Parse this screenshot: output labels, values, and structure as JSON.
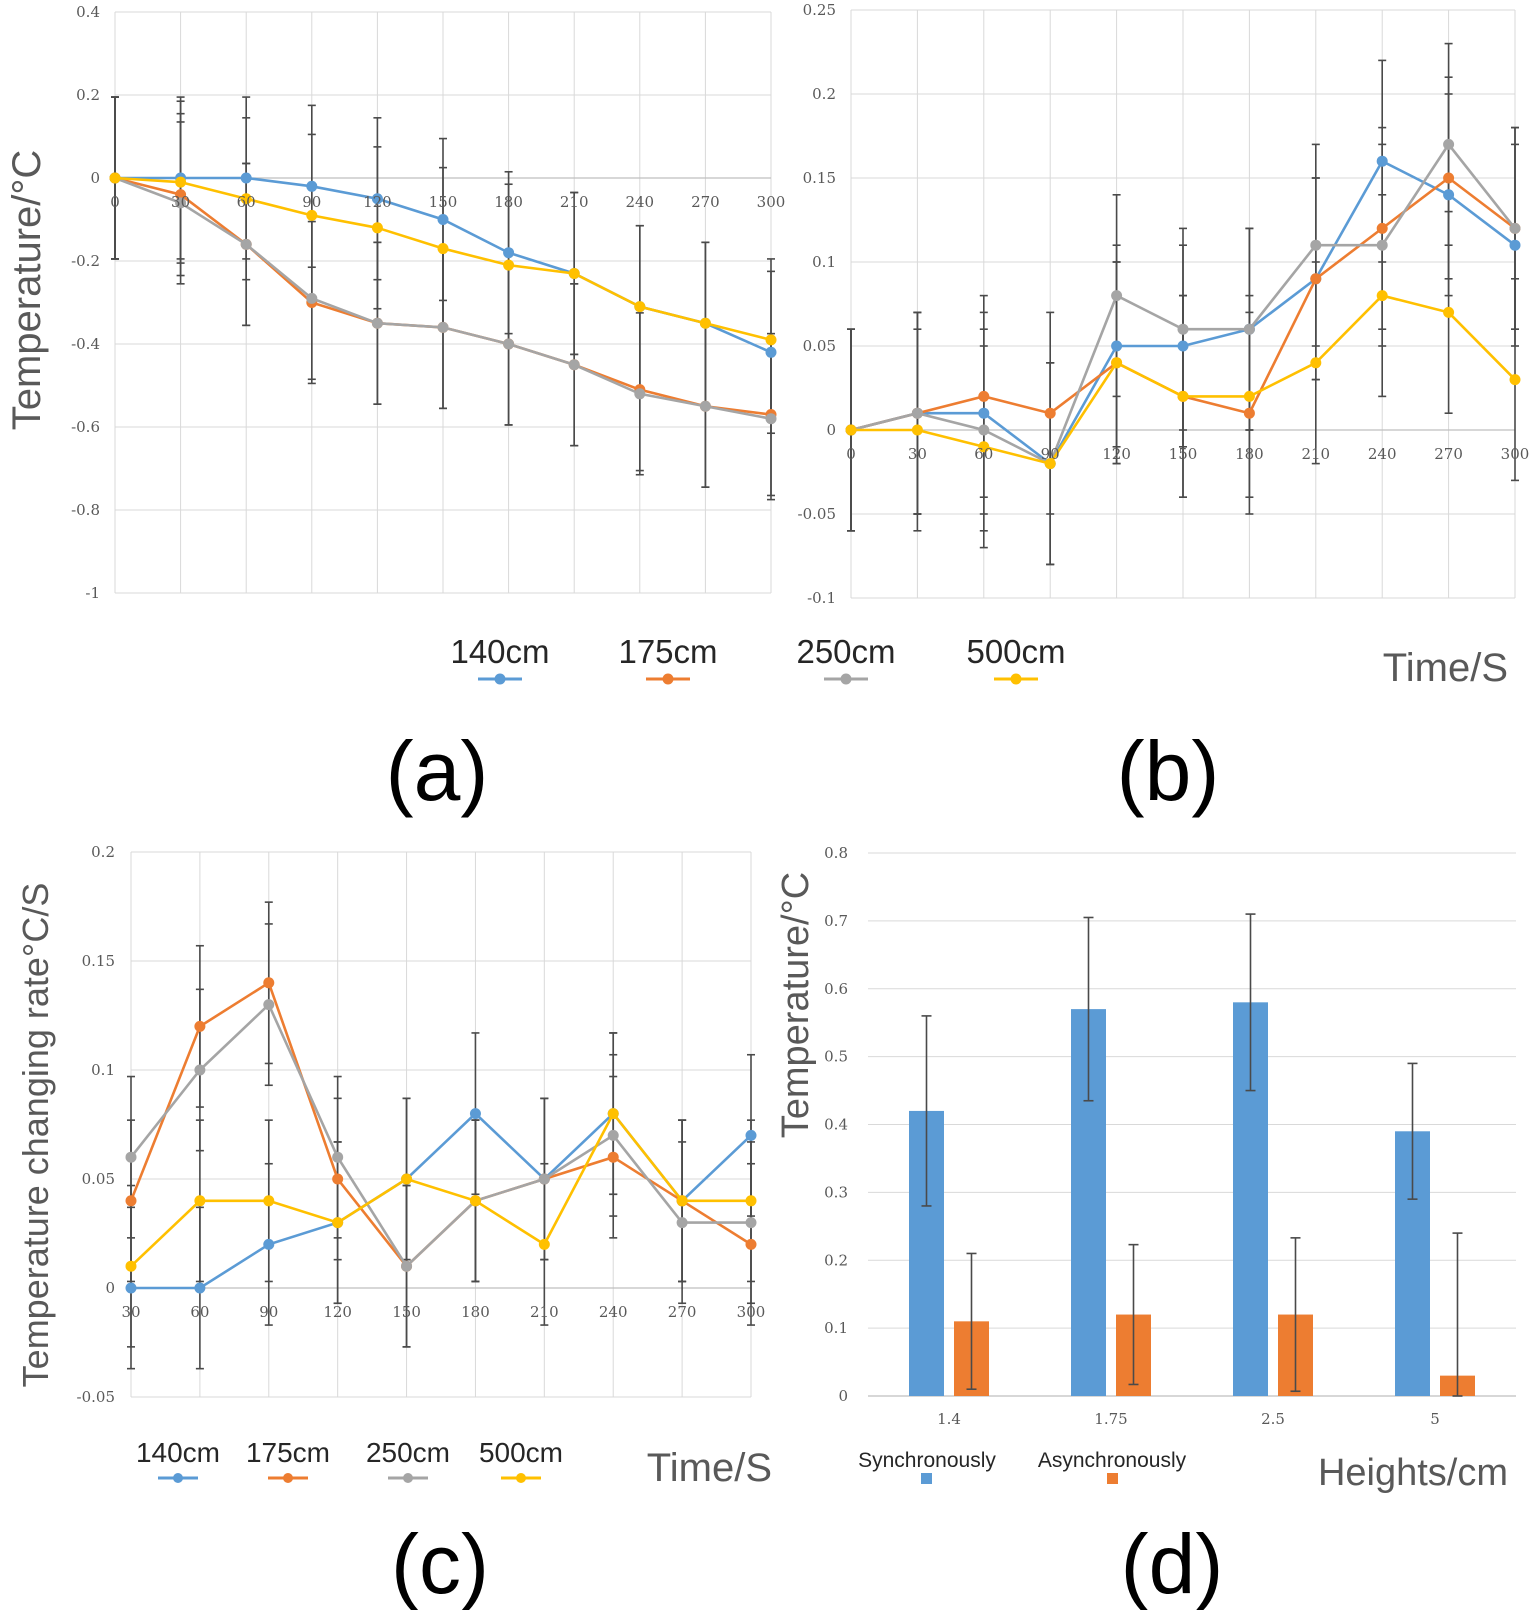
{
  "chart_data": [
    {
      "id": "a",
      "type": "line",
      "panel_label": "(a)",
      "ylabel": "Temperature/°C",
      "xlabel": "",
      "categories": [
        "0",
        "30",
        "60",
        "90",
        "120",
        "150",
        "180",
        "210",
        "240",
        "270",
        "300"
      ],
      "ylim": [
        -1,
        0.4
      ],
      "yticks": [
        "0.4",
        "0.2",
        "0",
        "-0.2",
        "-0.4",
        "-0.6",
        "-0.8",
        "-1"
      ],
      "grid": true,
      "series": [
        {
          "name": "140cm",
          "color": "#5b9bd5",
          "values": [
            0,
            0,
            0,
            -0.02,
            -0.05,
            -0.1,
            -0.18,
            -0.23,
            -0.31,
            -0.35,
            -0.42
          ]
        },
        {
          "name": "175cm",
          "color": "#ed7d31",
          "values": [
            0,
            -0.04,
            -0.16,
            -0.3,
            -0.35,
            -0.36,
            -0.4,
            -0.45,
            -0.51,
            -0.55,
            -0.57
          ]
        },
        {
          "name": "250cm",
          "color": "#a5a5a5",
          "values": [
            0,
            -0.06,
            -0.16,
            -0.29,
            -0.35,
            -0.36,
            -0.4,
            -0.45,
            -0.52,
            -0.55,
            -0.58
          ]
        },
        {
          "name": "500cm",
          "color": "#ffc000",
          "values": [
            0,
            -0.01,
            -0.05,
            -0.09,
            -0.12,
            -0.17,
            -0.21,
            -0.23,
            -0.31,
            -0.35,
            -0.39
          ]
        }
      ],
      "error": 0.195
    },
    {
      "id": "b",
      "type": "line",
      "panel_label": "(b)",
      "ylabel": "",
      "xlabel": "Time/S",
      "categories": [
        "0",
        "30",
        "60",
        "90",
        "120",
        "150",
        "180",
        "210",
        "240",
        "270",
        "300"
      ],
      "ylim": [
        -0.1,
        0.25
      ],
      "yticks": [
        "0.25",
        "0.2",
        "0.15",
        "0.1",
        "0.05",
        "0",
        "-0.05",
        "-0.1"
      ],
      "grid": true,
      "series": [
        {
          "name": "140cm",
          "color": "#5b9bd5",
          "values": [
            0,
            0.01,
            0.01,
            -0.02,
            0.05,
            0.05,
            0.06,
            0.09,
            0.16,
            0.14,
            0.11
          ]
        },
        {
          "name": "175cm",
          "color": "#ed7d31",
          "values": [
            0,
            0.01,
            0.02,
            0.01,
            0.04,
            0.02,
            0.01,
            0.09,
            0.12,
            0.15,
            0.12
          ]
        },
        {
          "name": "250cm",
          "color": "#a5a5a5",
          "values": [
            0,
            0.01,
            0,
            -0.02,
            0.08,
            0.06,
            0.06,
            0.11,
            0.11,
            0.17,
            0.12
          ]
        },
        {
          "name": "500cm",
          "color": "#ffc000",
          "values": [
            0,
            0,
            -0.01,
            -0.02,
            0.04,
            0.02,
            0.02,
            0.04,
            0.08,
            0.07,
            0.03
          ]
        }
      ],
      "error": 0.06
    },
    {
      "id": "c",
      "type": "line",
      "panel_label": "(c)",
      "ylabel": "Temperature changing rate°C/S",
      "xlabel": "Time/S",
      "categories": [
        "30",
        "60",
        "90",
        "120",
        "150",
        "180",
        "210",
        "240",
        "270",
        "300"
      ],
      "ylim": [
        -0.05,
        0.2
      ],
      "yticks": [
        "0.2",
        "0.15",
        "0.1",
        "0.05",
        "0",
        "-0.05"
      ],
      "grid": true,
      "series": [
        {
          "name": "140cm",
          "color": "#5b9bd5",
          "values": [
            0,
            0,
            0.02,
            0.03,
            0.05,
            0.08,
            0.05,
            0.08,
            0.04,
            0.07
          ]
        },
        {
          "name": "175cm",
          "color": "#ed7d31",
          "values": [
            0.04,
            0.12,
            0.14,
            0.05,
            0.01,
            0.04,
            0.05,
            0.06,
            0.04,
            0.02
          ]
        },
        {
          "name": "250cm",
          "color": "#a5a5a5",
          "values": [
            0.06,
            0.1,
            0.13,
            0.06,
            0.01,
            0.04,
            0.05,
            0.07,
            0.03,
            0.03
          ]
        },
        {
          "name": "500cm",
          "color": "#ffc000",
          "values": [
            0.01,
            0.04,
            0.04,
            0.03,
            0.05,
            0.04,
            0.02,
            0.08,
            0.04,
            0.04
          ]
        }
      ],
      "error": 0.037
    },
    {
      "id": "d",
      "type": "bar",
      "panel_label": "(d)",
      "ylabel": "Temperature/°C",
      "xlabel": "Heights/cm",
      "categories": [
        "1.4",
        "1.75",
        "2.5",
        "5"
      ],
      "ylim": [
        0,
        0.8
      ],
      "yticks": [
        "0.8",
        "0.7",
        "0.6",
        "0.5",
        "0.4",
        "0.3",
        "0.2",
        "0.1",
        "0"
      ],
      "grid": true,
      "series": [
        {
          "name": "Synchronously",
          "color": "#5b9bd5",
          "values": [
            0.42,
            0.57,
            0.58,
            0.39
          ],
          "error": [
            0.14,
            0.135,
            0.13,
            0.1
          ]
        },
        {
          "name": "Asynchronously",
          "color": "#ed7d31",
          "values": [
            0.11,
            0.12,
            0.12,
            0.03
          ],
          "error": [
            0.1,
            0.103,
            0.113,
            0.21
          ]
        }
      ]
    }
  ]
}
